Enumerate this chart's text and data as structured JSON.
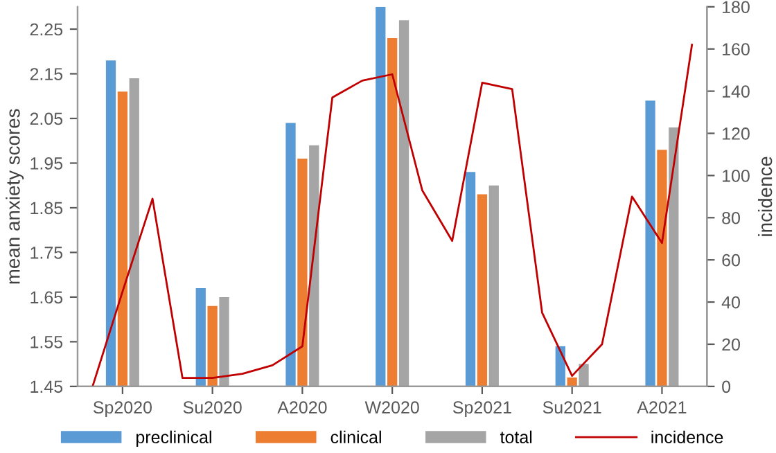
{
  "chart_data": {
    "type": "bar",
    "ylabel": "mean anxiety scores",
    "y2label": "incidence",
    "categories": [
      null,
      "Sp2020",
      null,
      null,
      "Su2020",
      null,
      null,
      "A2020",
      null,
      null,
      "W2020",
      null,
      null,
      "Sp2021",
      null,
      null,
      "Su2021",
      null,
      null,
      "A2021",
      null
    ],
    "series": [
      {
        "name": "preclinical",
        "color": "#5b9bd5",
        "values": [
          null,
          2.18,
          null,
          null,
          1.67,
          null,
          null,
          2.04,
          null,
          null,
          2.3,
          null,
          null,
          1.93,
          null,
          null,
          1.54,
          null,
          null,
          2.09,
          null
        ]
      },
      {
        "name": "clinical",
        "color": "#ed7d31",
        "values": [
          null,
          2.11,
          null,
          null,
          1.63,
          null,
          null,
          1.96,
          null,
          null,
          2.23,
          null,
          null,
          1.88,
          null,
          null,
          1.47,
          null,
          null,
          1.98,
          null
        ]
      },
      {
        "name": "total",
        "color": "#a5a5a5",
        "values": [
          null,
          2.14,
          null,
          null,
          1.65,
          null,
          null,
          1.99,
          null,
          null,
          2.27,
          null,
          null,
          1.9,
          null,
          null,
          1.5,
          null,
          null,
          2.03,
          null
        ]
      },
      {
        "name": "incidence",
        "type": "line",
        "axis": "y2",
        "color": "#c00000",
        "values": [
          0,
          45,
          89,
          4,
          4,
          6,
          10,
          19,
          137,
          145,
          148,
          93,
          69,
          144,
          141,
          35,
          5,
          20,
          90,
          68,
          162
        ]
      }
    ],
    "ylim": [
      1.45,
      2.3
    ],
    "yticks": [
      1.45,
      1.55,
      1.65,
      1.75,
      1.85,
      1.95,
      2.05,
      2.15,
      2.25
    ],
    "y2lim": [
      0,
      180
    ],
    "y2ticks": [
      0,
      20,
      40,
      60,
      80,
      100,
      120,
      140,
      160,
      180
    ],
    "legend": "bottom",
    "grid": false
  }
}
